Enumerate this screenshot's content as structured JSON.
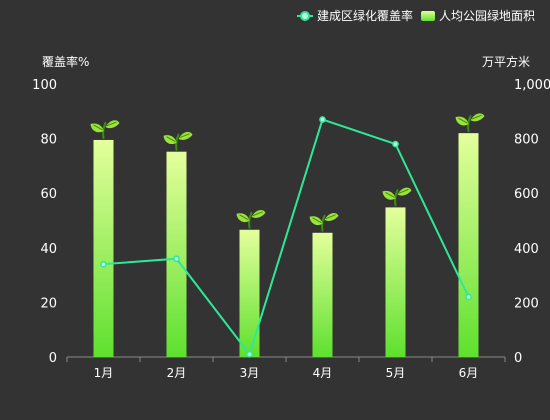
{
  "chart_data": {
    "type": "bar",
    "categories": [
      "1月",
      "2月",
      "3月",
      "4月",
      "5月",
      "6月"
    ],
    "legend": {
      "placement": "top-right",
      "entries": [
        "建成区绿化覆盖率",
        "人均公园绿地面积"
      ]
    },
    "series": [
      {
        "name": "人均公园绿地面积",
        "type": "bar",
        "axis": "right",
        "values": [
          795,
          752,
          466,
          455,
          548,
          820
        ]
      },
      {
        "name": "建成区绿化覆盖率",
        "type": "line",
        "axis": "left",
        "values": [
          34,
          36,
          1,
          87,
          78,
          22
        ]
      }
    ],
    "y_left": {
      "label": "覆盖率%",
      "range": [
        0,
        100
      ],
      "ticks": [
        "0",
        "20",
        "40",
        "60",
        "80",
        "100"
      ]
    },
    "y_right": {
      "label": "万平方米",
      "range": [
        0,
        1000
      ],
      "ticks": [
        "0",
        "200",
        "400",
        "600",
        "800",
        "1,000"
      ]
    },
    "grid": false,
    "bar_marker_icon": "sprout-icon",
    "colors": {
      "background": "#333333",
      "text": "#ffffff",
      "axis": "#888888",
      "line": "#2ee89a",
      "line_point_fill": "#b8ffe0",
      "bar_top": "#e4ff9c",
      "bar_bottom": "#5ee02e",
      "sprout": "#9be23a",
      "sprout_dark": "#3b8e12"
    }
  }
}
